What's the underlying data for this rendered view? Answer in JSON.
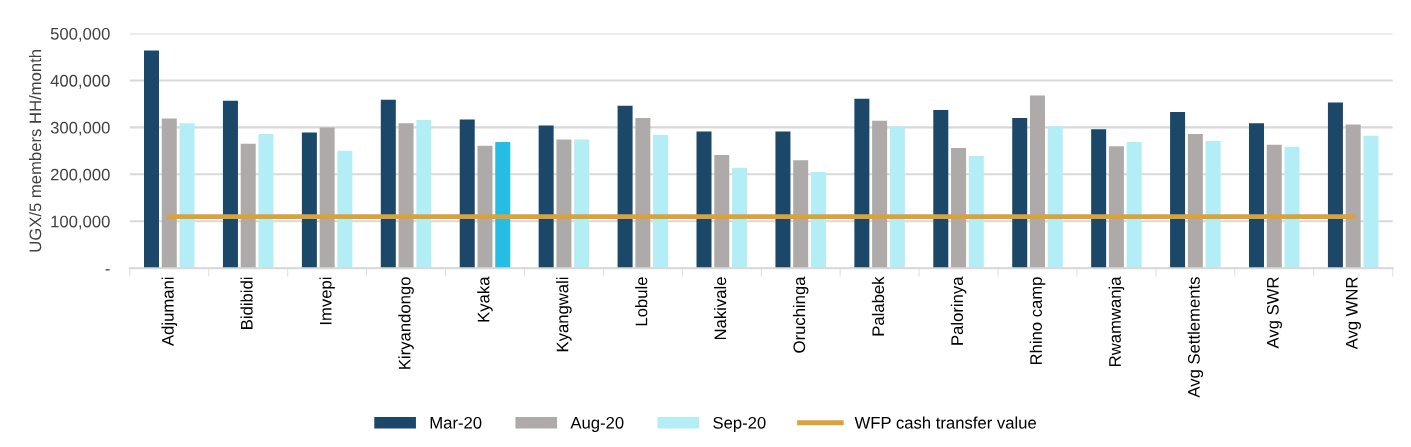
{
  "chart_data": {
    "type": "bar",
    "ylabel": "UGX/5 members HH/month",
    "categories": [
      "Adjumani",
      "Bidibidi",
      "Imvepi",
      "Kiryandongo",
      "Kyaka",
      "Kyangwali",
      "Lobule",
      "Nakivale",
      "Oruchinga",
      "Palabek",
      "Palorinya",
      "Rhino camp",
      "Rwamwanja",
      "Avg Settlements",
      "Avg SWR",
      "Avg WNR"
    ],
    "series": [
      {
        "name": "Mar-20",
        "color": "#1b4769",
        "values": [
          464000,
          357000,
          289000,
          359000,
          317000,
          304000,
          346000,
          291000,
          291000,
          361000,
          337000,
          320000,
          296000,
          333000,
          309000,
          353000
        ]
      },
      {
        "name": "Aug-20",
        "color": "#aeaaa9",
        "values": [
          319000,
          265000,
          300000,
          309000,
          261000,
          274000,
          320000,
          241000,
          230000,
          314000,
          256000,
          368000,
          260000,
          286000,
          263000,
          306000
        ]
      },
      {
        "name": "Sep-20",
        "color": "#b3eef7",
        "colors": [
          "#b3eef7",
          "#b3eef7",
          "#b3eef7",
          "#b3eef7",
          "#25bde3",
          "#b3eef7",
          "#b3eef7",
          "#b3eef7",
          "#b3eef7",
          "#b3eef7",
          "#b3eef7",
          "#b3eef7",
          "#b3eef7",
          "#b3eef7",
          "#b3eef7",
          "#b3eef7"
        ],
        "values": [
          309000,
          286000,
          250000,
          316000,
          269000,
          274000,
          284000,
          214000,
          205000,
          302000,
          239000,
          302000,
          269000,
          271000,
          259000,
          282000
        ]
      },
      {
        "name": "WFP cash transfer value",
        "type": "line",
        "color": "#d9a23a",
        "values": [
          110000,
          110000,
          110000,
          110000,
          110000,
          110000,
          110000,
          110000,
          110000,
          110000,
          110000,
          110000,
          110000,
          110000,
          110000,
          110000
        ]
      }
    ],
    "ylim": [
      0,
      500000
    ],
    "yticks": [
      {
        "value": 0,
        "label": "-"
      },
      {
        "value": 100000,
        "label": "100,000"
      },
      {
        "value": 200000,
        "label": "200,000"
      },
      {
        "value": 300000,
        "label": "300,000"
      },
      {
        "value": 400000,
        "label": "400,000"
      },
      {
        "value": 500000,
        "label": "500,000"
      }
    ],
    "grid": "y",
    "legend": "bottom"
  }
}
